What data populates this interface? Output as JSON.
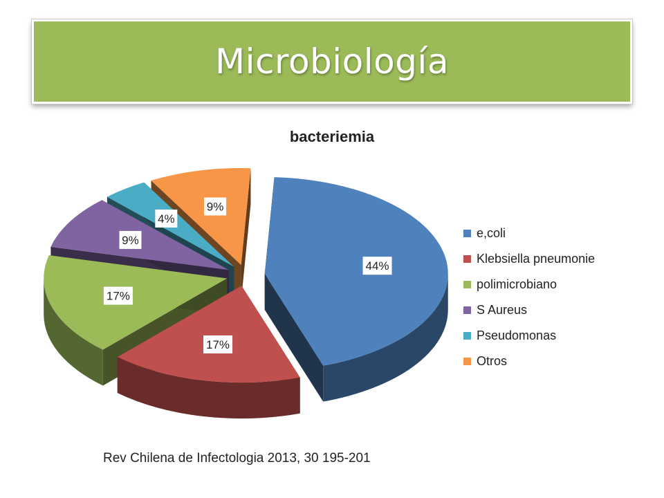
{
  "slide": {
    "title": "Microbiología",
    "source": "Rev Chilena de Infectologia 2013, 30 195-201"
  },
  "chart_data": {
    "type": "pie",
    "title": "bacteriemia",
    "labels": [
      "e,coli",
      "Klebsiella pneumonie",
      "polimicrobiano",
      "S Aureus",
      "Pseudomonas",
      "Otros"
    ],
    "values": [
      44,
      17,
      17,
      9,
      4,
      9
    ],
    "data_labels": [
      "44%",
      "17%",
      "17%",
      "9%",
      "4%",
      "9%"
    ],
    "colors": [
      "#4f81bd",
      "#c0504d",
      "#9bbb59",
      "#8064a2",
      "#4bacc6",
      "#f79646"
    ],
    "legend_position": "right",
    "exploded": true,
    "style": "3d"
  }
}
